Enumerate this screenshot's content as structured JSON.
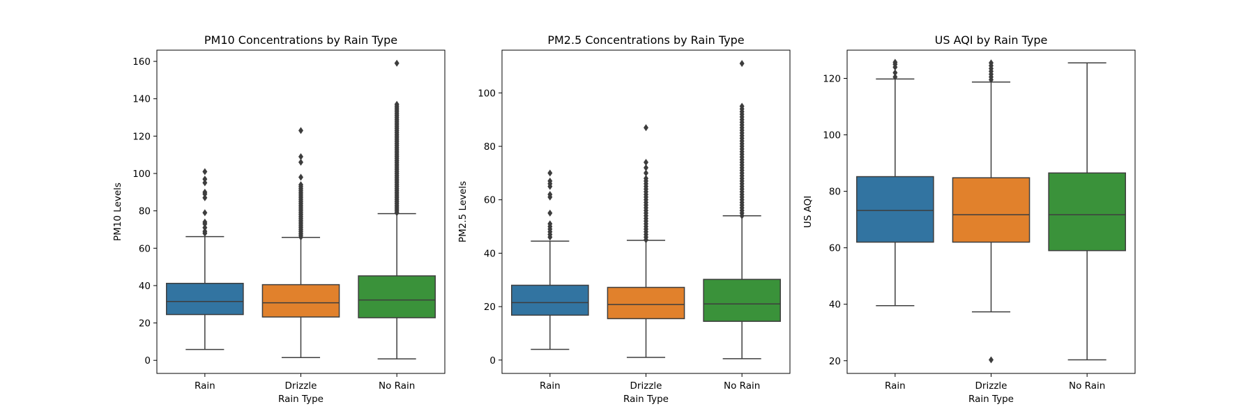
{
  "chart_data": [
    {
      "type": "box",
      "title": "PM10 Concentrations by Rain Type",
      "xlabel": "Rain Type",
      "ylabel": "PM10 Levels",
      "ylim": [
        -7,
        166
      ],
      "yticks": [
        0,
        20,
        40,
        60,
        80,
        100,
        120,
        140,
        160
      ],
      "categories": [
        "Rain",
        "Drizzle",
        "No Rain"
      ],
      "series": [
        {
          "name": "Rain",
          "color": "#3274a1",
          "whisker_low": 5.8,
          "q1": 24.5,
          "median": 31.5,
          "q3": 41.2,
          "whisker_high": 66.2,
          "outliers": [
            68,
            69,
            71,
            73,
            74,
            79,
            87,
            89,
            90,
            95,
            97,
            101
          ]
        },
        {
          "name": "Drizzle",
          "color": "#e1812c",
          "whisker_low": 1.5,
          "q1": 23.2,
          "median": 30.8,
          "q3": 40.5,
          "whisker_high": 65.8,
          "outliers": [
            66,
            67,
            68,
            69,
            70,
            71,
            72,
            73,
            74,
            75,
            76,
            77,
            78,
            79,
            80,
            81,
            82,
            83,
            84,
            85,
            86,
            87,
            88,
            89,
            90,
            91,
            92,
            93,
            94,
            98,
            106,
            109,
            123
          ]
        },
        {
          "name": "No Rain",
          "color": "#3a923a",
          "whisker_low": 0.8,
          "q1": 22.8,
          "median": 32.3,
          "q3": 45.2,
          "whisker_high": 78.5,
          "outliers": [
            79,
            80,
            81,
            82,
            83,
            84,
            85,
            86,
            87,
            88,
            89,
            90,
            91,
            92,
            93,
            94,
            95,
            96,
            97,
            98,
            99,
            100,
            101,
            102,
            103,
            104,
            105,
            106,
            107,
            108,
            109,
            110,
            111,
            112,
            113,
            114,
            115,
            116,
            117,
            118,
            119,
            120,
            121,
            122,
            123,
            124,
            125,
            126,
            127,
            128,
            129,
            130,
            131,
            132,
            133,
            134,
            135,
            136,
            137,
            159
          ]
        }
      ]
    },
    {
      "type": "box",
      "title": "PM2.5 Concentrations by Rain Type",
      "xlabel": "Rain Type",
      "ylabel": "PM2.5 Levels",
      "ylim": [
        -5,
        116
      ],
      "yticks": [
        0,
        20,
        40,
        60,
        80,
        100
      ],
      "categories": [
        "Rain",
        "Drizzle",
        "No Rain"
      ],
      "series": [
        {
          "name": "Rain",
          "color": "#3274a1",
          "whisker_low": 4.0,
          "q1": 16.8,
          "median": 21.5,
          "q3": 28.0,
          "whisker_high": 44.5,
          "outliers": [
            46,
            47,
            48,
            49,
            50,
            51,
            55,
            61,
            62,
            65,
            66,
            67,
            70
          ]
        },
        {
          "name": "Drizzle",
          "color": "#e1812c",
          "whisker_low": 1.0,
          "q1": 15.5,
          "median": 20.8,
          "q3": 27.2,
          "whisker_high": 44.8,
          "outliers": [
            45,
            46,
            47,
            48,
            49,
            50,
            51,
            52,
            53,
            54,
            55,
            56,
            57,
            58,
            59,
            60,
            61,
            62,
            63,
            64,
            65,
            66,
            67,
            68,
            70,
            72,
            74,
            87
          ]
        },
        {
          "name": "No Rain",
          "color": "#3a923a",
          "whisker_low": 0.5,
          "q1": 14.5,
          "median": 21.0,
          "q3": 30.2,
          "whisker_high": 54.0,
          "outliers": [
            54,
            55,
            56,
            57,
            58,
            59,
            60,
            61,
            62,
            63,
            64,
            65,
            66,
            67,
            68,
            69,
            70,
            71,
            72,
            73,
            74,
            75,
            76,
            77,
            78,
            79,
            80,
            81,
            82,
            83,
            84,
            85,
            86,
            87,
            88,
            89,
            90,
            91,
            92,
            93,
            94,
            95,
            111
          ]
        }
      ]
    },
    {
      "type": "box",
      "title": "US AQI by Rain Type",
      "xlabel": "Rain Type",
      "ylabel": "US AQI",
      "ylim": [
        15.5,
        130
      ],
      "yticks": [
        20,
        40,
        60,
        80,
        100,
        120
      ],
      "categories": [
        "Rain",
        "Drizzle",
        "No Rain"
      ],
      "series": [
        {
          "name": "Rain",
          "color": "#3274a1",
          "whisker_low": 39.5,
          "q1": 62.0,
          "median": 73.2,
          "q3": 85.2,
          "whisker_high": 119.8,
          "outliers": [
            120.5,
            122,
            124,
            125,
            125.7
          ]
        },
        {
          "name": "Drizzle",
          "color": "#e1812c",
          "whisker_low": 37.3,
          "q1": 62.0,
          "median": 71.7,
          "q3": 84.8,
          "whisker_high": 118.7,
          "outliers": [
            119.5,
            120.5,
            121.5,
            122.5,
            123.5,
            124.5,
            125.5,
            20.3
          ]
        },
        {
          "name": "No Rain",
          "color": "#3a923a",
          "whisker_low": 20.3,
          "q1": 59.0,
          "median": 71.7,
          "q3": 86.5,
          "whisker_high": 125.5,
          "outliers": []
        }
      ]
    }
  ]
}
